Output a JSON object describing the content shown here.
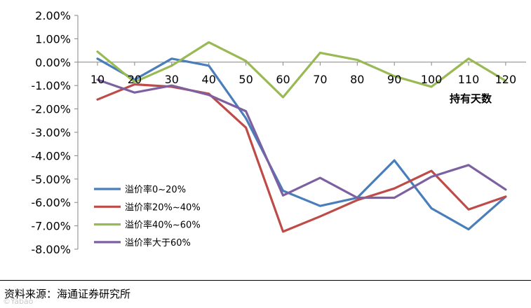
{
  "chart_data": {
    "type": "line",
    "title": "",
    "xlabel": "持有天数",
    "ylabel": "",
    "categories": [
      "10",
      "20",
      "30",
      "40",
      "50",
      "60",
      "70",
      "80",
      "90",
      "100",
      "110",
      "120"
    ],
    "y_ticks": [
      "2.00%",
      "1.00%",
      "0.00%",
      "-1.00%",
      "-2.00%",
      "-3.00%",
      "-4.00%",
      "-5.00%",
      "-6.00%",
      "-7.00%",
      "-8.00%"
    ],
    "ylim": [
      -8,
      2
    ],
    "grid": false,
    "legend_position": "lower-left",
    "series": [
      {
        "name": "溢价率0~20%",
        "color": "#4a7ebb",
        "values": [
          0.15,
          -0.75,
          0.15,
          -0.15,
          -2.4,
          -5.5,
          -6.15,
          -5.8,
          -4.2,
          -6.25,
          -7.15,
          -5.75
        ]
      },
      {
        "name": "溢价率20%~40%",
        "color": "#be4b48",
        "values": [
          -1.6,
          -0.95,
          -1.05,
          -1.35,
          -2.8,
          -7.25,
          -6.6,
          -5.9,
          -5.4,
          -4.65,
          -6.3,
          -5.75
        ]
      },
      {
        "name": "溢价率40%~60%",
        "color": "#98b954",
        "values": [
          0.45,
          -0.85,
          -0.15,
          0.85,
          0.05,
          -1.5,
          0.4,
          0.1,
          -0.6,
          -1.05,
          0.15,
          -0.8
        ]
      },
      {
        "name": "溢价率大于60%",
        "color": "#7d60a0",
        "values": [
          -0.75,
          -1.3,
          -1.0,
          -1.4,
          -2.1,
          -5.7,
          -4.95,
          -5.8,
          -5.8,
          -4.9,
          -4.4,
          -5.45
        ]
      }
    ]
  },
  "source_text": "资料来源：海通证券研究所",
  "watermark_text": "©Yabao"
}
